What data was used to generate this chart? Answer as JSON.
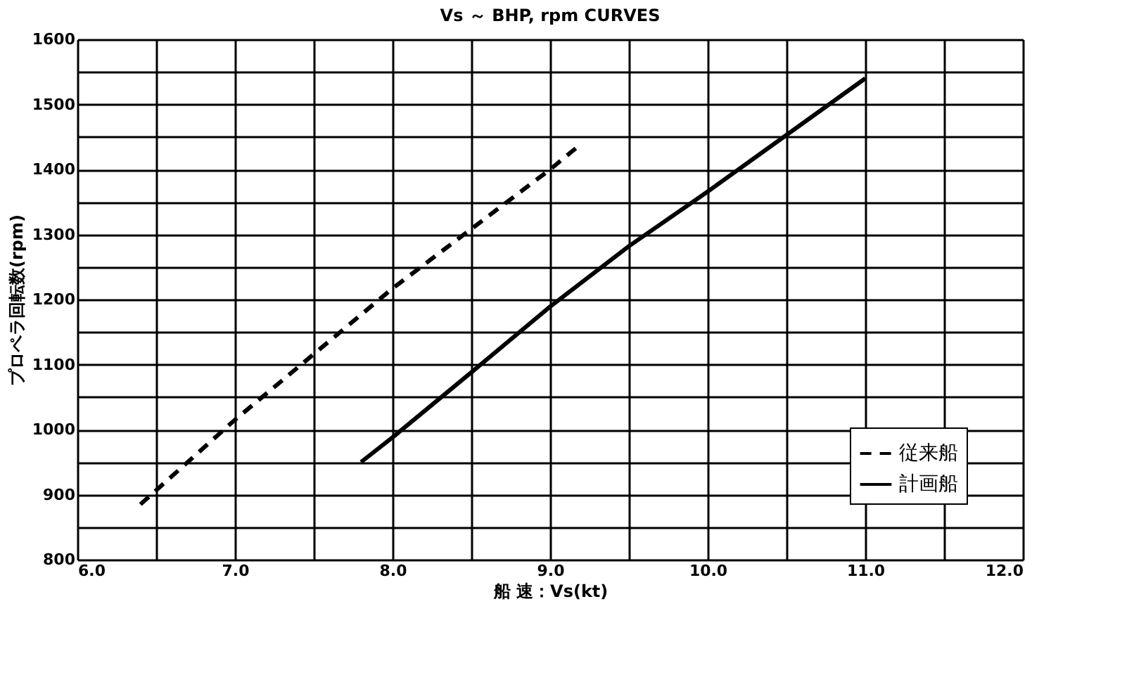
{
  "chart_data": {
    "type": "line",
    "title": "Vs ～ BHP,  rpm  CURVES",
    "xlabel": "船 速：Vs(kt)",
    "ylabel": "プロペラ回転数(rpm)",
    "xlim": [
      6.0,
      12.0
    ],
    "xticks": [
      {
        "value": 6.0,
        "label": "6.0"
      },
      {
        "value": 6.5,
        "label": null
      },
      {
        "value": 7.0,
        "label": "7.0"
      },
      {
        "value": 7.5,
        "label": null
      },
      {
        "value": 8.0,
        "label": "8.0"
      },
      {
        "value": 8.5,
        "label": null
      },
      {
        "value": 9.0,
        "label": "9.0"
      },
      {
        "value": 9.5,
        "label": null
      },
      {
        "value": 10.0,
        "label": "10.0"
      },
      {
        "value": 10.5,
        "label": null
      },
      {
        "value": 11.0,
        "label": "11.0"
      },
      {
        "value": 11.5,
        "label": null
      },
      {
        "value": 12.0,
        "label": "12.0"
      }
    ],
    "ylim": [
      800,
      1600
    ],
    "yticks": [
      800,
      {
        "value": 850,
        "label": null
      },
      900,
      {
        "value": 950,
        "label": null
      },
      1000,
      {
        "value": 1050,
        "label": null
      },
      1100,
      {
        "value": 1150,
        "label": null
      },
      1200,
      {
        "value": 1250,
        "label": null
      },
      1300,
      {
        "value": 1350,
        "label": null
      },
      1400,
      {
        "value": 1450,
        "label": null
      },
      1500,
      {
        "value": 1550,
        "label": null
      },
      1600
    ],
    "grid": true,
    "legend": "bottom right",
    "series": [
      {
        "name": "従来船",
        "color": "#000000",
        "line_style": "dashed",
        "x": [
          6.4,
          7.0,
          8.0,
          9.0,
          9.2
        ],
        "values": [
          885,
          1015,
          1217,
          1400,
          1440
        ]
      },
      {
        "name": "計画船",
        "color": "#000000",
        "line_style": "solid",
        "x": [
          7.8,
          8.0,
          8.5,
          9.0,
          9.5,
          10.0,
          10.5,
          11.0
        ],
        "values": [
          950,
          988,
          1088,
          1189,
          1282,
          1366,
          1453,
          1540
        ]
      }
    ]
  }
}
